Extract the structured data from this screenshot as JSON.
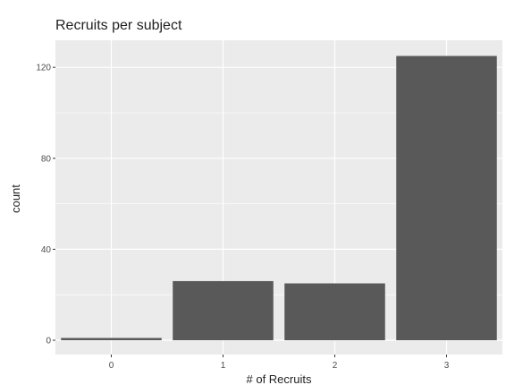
{
  "chart_data": {
    "type": "bar",
    "title": "Recruits per subject",
    "xlabel": "# of Recruits",
    "ylabel": "count",
    "categories": [
      "0",
      "1",
      "2",
      "3"
    ],
    "values": [
      1,
      26,
      25,
      125
    ],
    "ylim": [
      0,
      128
    ],
    "yticks": [
      0,
      40,
      80,
      120
    ],
    "grid": true,
    "legend": "none",
    "colors": {
      "panel": "#ebebeb",
      "grid_major": "#ffffff",
      "bar": "#595959"
    }
  }
}
